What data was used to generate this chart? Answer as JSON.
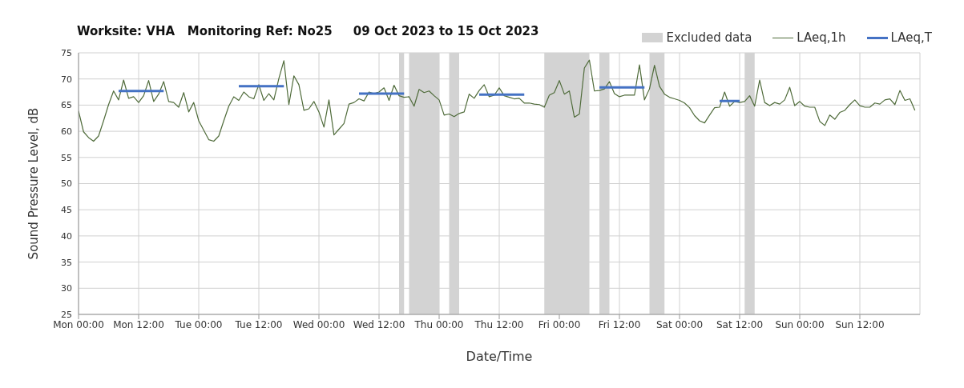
{
  "chart_data": {
    "type": "line",
    "title": "Worksite: VHA   Monitoring Ref: No25     09 Oct 2023 to 15 Oct 2023",
    "xlabel": "Date/Time",
    "ylabel": "Sound Pressure Level, dB",
    "xlim": [
      "2023-10-09T00:00",
      "2023-10-16T00:00"
    ],
    "xticks": [
      {
        "value": "2023-10-09T00:00",
        "label": "Mon 00:00"
      },
      {
        "value": "2023-10-09T12:00",
        "label": "Mon 12:00"
      },
      {
        "value": "2023-10-10T00:00",
        "label": "Tue 00:00"
      },
      {
        "value": "2023-10-10T12:00",
        "label": "Tue 12:00"
      },
      {
        "value": "2023-10-11T00:00",
        "label": "Wed 00:00"
      },
      {
        "value": "2023-10-11T12:00",
        "label": "Wed 12:00"
      },
      {
        "value": "2023-10-12T00:00",
        "label": "Thu 00:00"
      },
      {
        "value": "2023-10-12T12:00",
        "label": "Thu 12:00"
      },
      {
        "value": "2023-10-13T00:00",
        "label": "Fri 00:00"
      },
      {
        "value": "2023-10-13T12:00",
        "label": "Fri 12:00"
      },
      {
        "value": "2023-10-14T00:00",
        "label": "Sat 00:00"
      },
      {
        "value": "2023-10-14T12:00",
        "label": "Sat 12:00"
      },
      {
        "value": "2023-10-15T00:00",
        "label": "Sun 00:00"
      },
      {
        "value": "2023-10-15T12:00",
        "label": "Sun 12:00"
      }
    ],
    "ylim": [
      25,
      75
    ],
    "yticks": [
      25,
      30,
      35,
      40,
      45,
      50,
      55,
      60,
      65,
      70,
      75
    ],
    "grid": true,
    "legend": "top right",
    "marker": "none",
    "line_style": "solid",
    "bands": [
      {
        "axis": "x",
        "from": "2023-10-11T16:00",
        "to": "2023-10-11T17:00",
        "label": "Excluded data",
        "color": "#d3d3d3"
      },
      {
        "axis": "x",
        "from": "2023-10-11T18:00",
        "to": "2023-10-12T00:00",
        "color": "#d3d3d3"
      },
      {
        "axis": "x",
        "from": "2023-10-12T02:00",
        "to": "2023-10-12T04:00",
        "color": "#d3d3d3"
      },
      {
        "axis": "x",
        "from": "2023-10-12T21:00",
        "to": "2023-10-13T06:00",
        "color": "#d3d3d3"
      },
      {
        "axis": "x",
        "from": "2023-10-13T08:00",
        "to": "2023-10-13T10:00",
        "color": "#d3d3d3"
      },
      {
        "axis": "x",
        "from": "2023-10-13T18:00",
        "to": "2023-10-13T21:00",
        "color": "#d3d3d3"
      },
      {
        "axis": "x",
        "from": "2023-10-14T13:00",
        "to": "2023-10-14T15:00",
        "color": "#d3d3d3"
      }
    ],
    "series": [
      {
        "name": "LAeq,1h",
        "color": "#4f6b3a",
        "x": [
          "2023-10-09T00:00",
          "2023-10-09T01:00",
          "2023-10-09T02:00",
          "2023-10-09T03:00",
          "2023-10-09T04:00",
          "2023-10-09T05:00",
          "2023-10-09T06:00",
          "2023-10-09T07:00",
          "2023-10-09T08:00",
          "2023-10-09T09:00",
          "2023-10-09T10:00",
          "2023-10-09T11:00",
          "2023-10-09T12:00",
          "2023-10-09T13:00",
          "2023-10-09T14:00",
          "2023-10-09T15:00",
          "2023-10-09T16:00",
          "2023-10-09T17:00",
          "2023-10-09T18:00",
          "2023-10-09T19:00",
          "2023-10-09T20:00",
          "2023-10-09T21:00",
          "2023-10-09T22:00",
          "2023-10-09T23:00",
          "2023-10-10T00:00",
          "2023-10-10T01:00",
          "2023-10-10T02:00",
          "2023-10-10T03:00",
          "2023-10-10T04:00",
          "2023-10-10T05:00",
          "2023-10-10T06:00",
          "2023-10-10T07:00",
          "2023-10-10T08:00",
          "2023-10-10T09:00",
          "2023-10-10T10:00",
          "2023-10-10T11:00",
          "2023-10-10T12:00",
          "2023-10-10T13:00",
          "2023-10-10T14:00",
          "2023-10-10T15:00",
          "2023-10-10T16:00",
          "2023-10-10T17:00",
          "2023-10-10T18:00",
          "2023-10-10T19:00",
          "2023-10-10T20:00",
          "2023-10-10T21:00",
          "2023-10-10T22:00",
          "2023-10-10T23:00",
          "2023-10-11T00:00",
          "2023-10-11T01:00",
          "2023-10-11T02:00",
          "2023-10-11T03:00",
          "2023-10-11T04:00",
          "2023-10-11T05:00",
          "2023-10-11T06:00",
          "2023-10-11T07:00",
          "2023-10-11T08:00",
          "2023-10-11T09:00",
          "2023-10-11T10:00",
          "2023-10-11T11:00",
          "2023-10-11T12:00",
          "2023-10-11T13:00",
          "2023-10-11T14:00",
          "2023-10-11T15:00",
          "2023-10-11T16:00",
          "2023-10-11T17:00",
          "2023-10-11T18:00",
          "2023-10-11T19:00",
          "2023-10-11T20:00",
          "2023-10-11T21:00",
          "2023-10-11T22:00",
          "2023-10-11T23:00",
          "2023-10-12T00:00",
          "2023-10-12T01:00",
          "2023-10-12T02:00",
          "2023-10-12T03:00",
          "2023-10-12T04:00",
          "2023-10-12T05:00",
          "2023-10-12T06:00",
          "2023-10-12T07:00",
          "2023-10-12T08:00",
          "2023-10-12T09:00",
          "2023-10-12T10:00",
          "2023-10-12T11:00",
          "2023-10-12T12:00",
          "2023-10-12T13:00",
          "2023-10-12T14:00",
          "2023-10-12T15:00",
          "2023-10-12T16:00",
          "2023-10-12T17:00",
          "2023-10-12T18:00",
          "2023-10-12T19:00",
          "2023-10-12T20:00",
          "2023-10-12T21:00",
          "2023-10-12T22:00",
          "2023-10-12T23:00",
          "2023-10-13T00:00",
          "2023-10-13T01:00",
          "2023-10-13T02:00",
          "2023-10-13T03:00",
          "2023-10-13T04:00",
          "2023-10-13T05:00",
          "2023-10-13T06:00",
          "2023-10-13T07:00",
          "2023-10-13T08:00",
          "2023-10-13T09:00",
          "2023-10-13T10:00",
          "2023-10-13T11:00",
          "2023-10-13T12:00",
          "2023-10-13T13:00",
          "2023-10-13T14:00",
          "2023-10-13T15:00",
          "2023-10-13T16:00",
          "2023-10-13T17:00",
          "2023-10-13T18:00",
          "2023-10-13T19:00",
          "2023-10-13T20:00",
          "2023-10-13T21:00",
          "2023-10-13T22:00",
          "2023-10-13T23:00",
          "2023-10-14T00:00",
          "2023-10-14T01:00",
          "2023-10-14T02:00",
          "2023-10-14T03:00",
          "2023-10-14T04:00",
          "2023-10-14T05:00",
          "2023-10-14T06:00",
          "2023-10-14T07:00",
          "2023-10-14T08:00",
          "2023-10-14T09:00",
          "2023-10-14T10:00",
          "2023-10-14T11:00",
          "2023-10-14T12:00",
          "2023-10-14T13:00",
          "2023-10-14T14:00",
          "2023-10-14T15:00",
          "2023-10-14T16:00",
          "2023-10-14T17:00",
          "2023-10-14T18:00",
          "2023-10-14T19:00",
          "2023-10-14T20:00",
          "2023-10-14T21:00",
          "2023-10-14T22:00",
          "2023-10-14T23:00",
          "2023-10-15T00:00",
          "2023-10-15T01:00",
          "2023-10-15T02:00",
          "2023-10-15T03:00",
          "2023-10-15T04:00",
          "2023-10-15T05:00",
          "2023-10-15T06:00",
          "2023-10-15T07:00",
          "2023-10-15T08:00",
          "2023-10-15T09:00",
          "2023-10-15T10:00",
          "2023-10-15T11:00",
          "2023-10-15T12:00",
          "2023-10-15T13:00",
          "2023-10-15T14:00",
          "2023-10-15T15:00",
          "2023-10-15T16:00",
          "2023-10-15T17:00",
          "2023-10-15T18:00",
          "2023-10-15T19:00",
          "2023-10-15T20:00",
          "2023-10-15T21:00",
          "2023-10-15T22:00",
          "2023-10-15T23:00"
        ],
        "values": [
          63.9,
          59.9,
          58.8,
          58.1,
          59.1,
          62,
          65.1,
          67.7,
          66,
          69.8,
          66.3,
          66.6,
          65.5,
          66.8,
          69.7,
          65.7,
          67.1,
          69.5,
          65.7,
          65.5,
          64.6,
          67.4,
          63.7,
          65.5,
          62,
          60.2,
          58.4,
          58.1,
          59.1,
          62,
          64.8,
          66.6,
          65.9,
          67.5,
          66.6,
          66.2,
          68.9,
          65.9,
          67.2,
          66,
          70.1,
          73.5,
          65.1,
          70.6,
          68.9,
          64,
          64.3,
          65.7,
          63.7,
          60.8,
          66,
          59.3,
          60.4,
          61.5,
          65.2,
          65.5,
          66.2,
          65.8,
          67.5,
          67.2,
          67.5,
          68.3,
          65.9,
          68.8,
          66.8,
          66.5,
          66.6,
          64.8,
          68,
          67.4,
          67.7,
          66.8,
          66,
          63.1,
          63.3,
          62.8,
          63.4,
          63.7,
          67.1,
          66.3,
          67.8,
          68.9,
          66.6,
          66.9,
          68.3,
          66.8,
          66.5,
          66.2,
          66.3,
          65.4,
          65.4,
          65.2,
          65.1,
          64.6,
          66.9,
          67.4,
          69.7,
          67.1,
          67.7,
          62.7,
          63.3,
          72.1,
          73.6,
          67.7,
          67.8,
          68.1,
          69.5,
          67.2,
          66.6,
          66.9,
          66.9,
          66.9,
          72.7,
          66,
          68.1,
          72.6,
          68.6,
          67.1,
          66.5,
          66.2,
          65.9,
          65.4,
          64.5,
          63,
          62,
          61.6,
          63.1,
          64.5,
          64.6,
          67.5,
          64.8,
          65.7,
          65.5,
          65.7,
          66.8,
          64.8,
          69.8,
          65.5,
          64.9,
          65.5,
          65.2,
          66,
          68.4,
          64.9,
          65.7,
          64.8,
          64.6,
          64.6,
          61.9,
          61.1,
          63.1,
          62.3,
          63.6,
          64,
          65.1,
          66,
          64.9,
          64.6,
          64.6,
          65.4,
          65.2,
          66,
          66.2,
          65.1,
          67.8,
          65.9,
          66.2,
          64
        ]
      },
      {
        "name": "LAeq,T",
        "color": "#4472c4",
        "x": [
          "2023-10-09T08:00",
          "2023-10-09T17:00",
          "2023-10-10T00:00",
          "2023-10-10T08:00",
          "2023-10-10T17:00",
          "2023-10-11T00:00",
          "2023-10-11T08:00",
          "2023-10-11T17:00",
          "2023-10-12T00:00",
          "2023-10-12T08:00",
          "2023-10-12T17:00",
          "2023-10-13T00:00",
          "2023-10-13T08:00",
          "2023-10-13T17:00",
          "2023-10-14T00:00",
          "2023-10-14T08:00",
          "2023-10-14T12:00"
        ],
        "values": [
          67.7,
          67.7,
          null,
          68.6,
          68.6,
          null,
          67.2,
          67.2,
          null,
          67,
          67,
          null,
          68.4,
          68.4,
          null,
          65.8,
          65.8
        ]
      }
    ]
  }
}
